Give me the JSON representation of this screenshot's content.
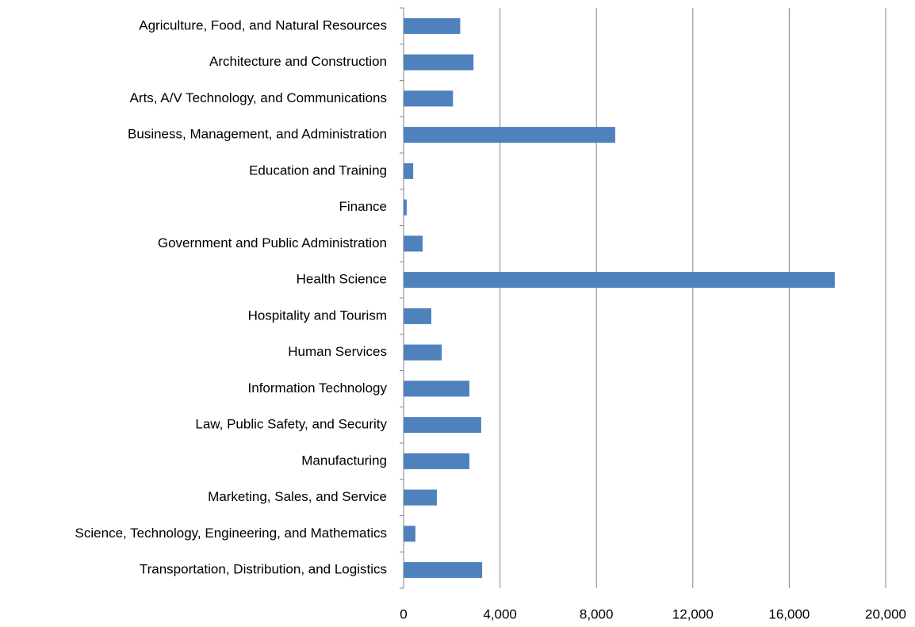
{
  "chart_data": {
    "type": "hbar",
    "categories": [
      "Agriculture, Food, and Natural Resources",
      "Architecture and Construction",
      "Arts, A/V Technology, and Communications",
      "Business, Management, and Administration",
      "Education and Training",
      "Finance",
      "Government and Public Administration",
      "Health Science",
      "Hospitality and Tourism",
      "Human Services",
      "Information Technology",
      "Law, Public Safety, and Security",
      "Manufacturing",
      "Marketing, Sales, and Service",
      "Science, Technology, Engineering, and Mathematics",
      "Transportation, Distribution, and Logistics"
    ],
    "values": [
      2350,
      2900,
      2050,
      8780,
      400,
      130,
      790,
      17890,
      1150,
      1580,
      2730,
      3220,
      2730,
      1380,
      490,
      3260
    ],
    "color": "#4f81bd",
    "xlim": [
      0,
      20000
    ],
    "xticks": [
      0,
      {
        "value": 4000,
        "label": "4,000"
      },
      {
        "value": 8000,
        "label": "8,000"
      },
      {
        "value": 12000,
        "label": "12,000"
      },
      {
        "value": 16000,
        "label": "16,000"
      },
      {
        "value": 20000,
        "label": "20,000"
      }
    ],
    "grid": true
  }
}
